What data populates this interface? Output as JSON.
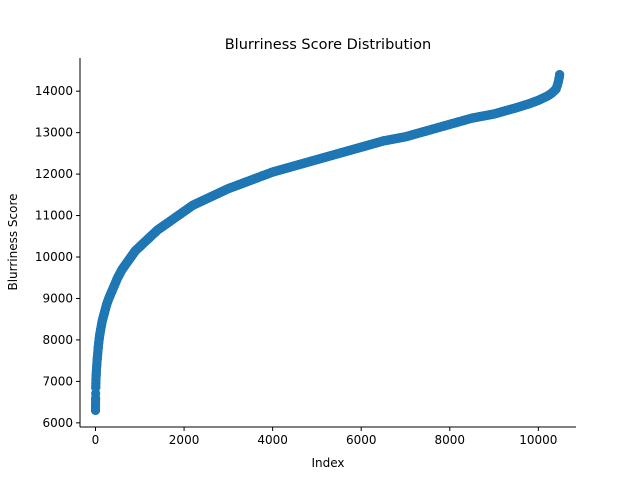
{
  "chart_data": {
    "type": "scatter",
    "title": "Blurriness Score Distribution",
    "xlabel": "Index",
    "ylabel": "Blurriness Score",
    "xlim": [
      -350,
      10850
    ],
    "ylim": [
      5900,
      14800
    ],
    "xticks": [
      0,
      2000,
      4000,
      6000,
      8000,
      10000
    ],
    "yticks": [
      6000,
      7000,
      8000,
      9000,
      10000,
      11000,
      12000,
      13000,
      14000
    ],
    "grid": false,
    "legend": "none",
    "spines": {
      "top": false,
      "right": false
    },
    "marker_color": "#1f77b4",
    "point_count": 10480,
    "series": [
      {
        "x": [
          0,
          1,
          2,
          3,
          5,
          8,
          10,
          15,
          20,
          30,
          40,
          60,
          80,
          100,
          150,
          200,
          250,
          300,
          400,
          500,
          600,
          700,
          800,
          900,
          1000,
          1200,
          1400,
          1600,
          1800,
          2000,
          2200,
          2500,
          3000,
          3500,
          4000,
          4500,
          5000,
          5500,
          6000,
          6500,
          7000,
          7500,
          8000,
          8500,
          9000,
          9500,
          9800,
          10000,
          10200,
          10300,
          10400,
          10430,
          10450,
          10465,
          10475,
          10480
        ],
        "y": [
          6300,
          6400,
          6500,
          6600,
          6850,
          6950,
          7050,
          7150,
          7250,
          7400,
          7550,
          7800,
          8000,
          8150,
          8450,
          8650,
          8850,
          9000,
          9250,
          9500,
          9700,
          9850,
          10000,
          10150,
          10250,
          10450,
          10650,
          10800,
          10950,
          11100,
          11250,
          11400,
          11650,
          11850,
          12050,
          12200,
          12350,
          12500,
          12650,
          12800,
          12900,
          13050,
          13200,
          13350,
          13450,
          13600,
          13700,
          13780,
          13880,
          13950,
          14050,
          14150,
          14220,
          14300,
          14350,
          14400
        ]
      }
    ]
  }
}
